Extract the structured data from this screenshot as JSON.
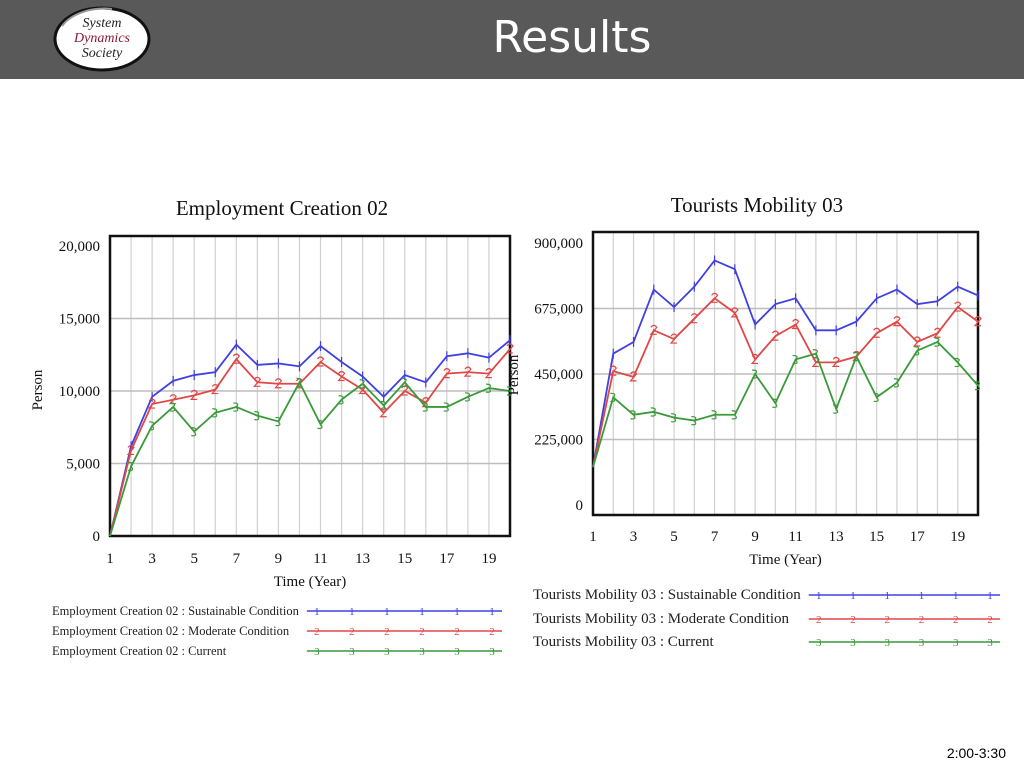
{
  "header": {
    "title": "Results",
    "background": "#595959"
  },
  "logo": {
    "line1": "System",
    "line2": "Dynamics",
    "line3": "Society"
  },
  "footer": {
    "time_range": "2:00-3:30"
  },
  "chart_data": [
    {
      "type": "line",
      "title": "Employment Creation 02",
      "xlabel": "Time (Year)",
      "ylabel": "Person",
      "x": [
        1,
        2,
        3,
        4,
        5,
        6,
        7,
        8,
        9,
        10,
        11,
        12,
        13,
        14,
        15,
        16,
        17,
        18,
        19,
        20
      ],
      "xticks": [
        "1",
        "3",
        "5",
        "7",
        "9",
        "11",
        "13",
        "15",
        "17",
        "19"
      ],
      "yticks": [
        "0",
        "5,000",
        "10,000",
        "15,000",
        "20,000"
      ],
      "ylim": [
        0,
        20000
      ],
      "xlim": [
        1,
        20
      ],
      "grid": true,
      "legend_position": "bottom",
      "series": [
        {
          "name": "Employment Creation 02 : Sustainable Condition",
          "marker": "1",
          "color": "#4040e0",
          "values": [
            0,
            6200,
            9600,
            10700,
            11100,
            11300,
            13200,
            11800,
            11900,
            11700,
            13100,
            12000,
            11000,
            9600,
            11100,
            10600,
            12400,
            12600,
            12300,
            13500
          ]
        },
        {
          "name": "Employment Creation 02 : Moderate Condition",
          "marker": "2",
          "color": "#e04848",
          "values": [
            0,
            5900,
            9100,
            9400,
            9700,
            10100,
            12200,
            10600,
            10500,
            10500,
            12000,
            11000,
            10100,
            8500,
            10000,
            9200,
            11200,
            11300,
            11200,
            12900
          ]
        },
        {
          "name": "Employment Creation 02 : Current",
          "marker": "3",
          "color": "#3a9a3a",
          "values": [
            0,
            4800,
            7600,
            8900,
            7200,
            8500,
            8900,
            8300,
            7900,
            10600,
            7700,
            9400,
            10500,
            9000,
            10600,
            8900,
            8900,
            9600,
            10200,
            10000
          ]
        }
      ]
    },
    {
      "type": "line",
      "title": "Tourists Mobility 03",
      "xlabel": "Time (Year)",
      "ylabel": "Person",
      "x": [
        1,
        2,
        3,
        4,
        5,
        6,
        7,
        8,
        9,
        10,
        11,
        12,
        13,
        14,
        15,
        16,
        17,
        18,
        19,
        20
      ],
      "xticks": [
        "1",
        "3",
        "5",
        "7",
        "9",
        "11",
        "13",
        "15",
        "17",
        "19"
      ],
      "yticks": [
        "0",
        "225,000",
        "450,000",
        "675,000",
        "900,000"
      ],
      "ylim": [
        0,
        900000
      ],
      "xlim": [
        1,
        20
      ],
      "grid": true,
      "legend_position": "bottom",
      "series": [
        {
          "name": "Tourists Mobility 03 : Sustainable Condition",
          "marker": "1",
          "color": "#4040e0",
          "values": [
            130000,
            520000,
            560000,
            740000,
            680000,
            750000,
            840000,
            810000,
            620000,
            690000,
            710000,
            600000,
            600000,
            630000,
            710000,
            740000,
            690000,
            700000,
            750000,
            720000
          ]
        },
        {
          "name": "Tourists Mobility 03 : Moderate Condition",
          "marker": "2",
          "color": "#e04848",
          "values": [
            130000,
            460000,
            440000,
            600000,
            570000,
            640000,
            710000,
            660000,
            500000,
            580000,
            620000,
            490000,
            490000,
            510000,
            590000,
            630000,
            560000,
            590000,
            680000,
            630000
          ]
        },
        {
          "name": "Tourists Mobility 03 : Current",
          "marker": "3",
          "color": "#3a9a3a",
          "values": [
            130000,
            370000,
            310000,
            320000,
            300000,
            290000,
            310000,
            310000,
            450000,
            350000,
            500000,
            520000,
            330000,
            510000,
            370000,
            420000,
            530000,
            560000,
            490000,
            410000
          ]
        }
      ]
    }
  ]
}
